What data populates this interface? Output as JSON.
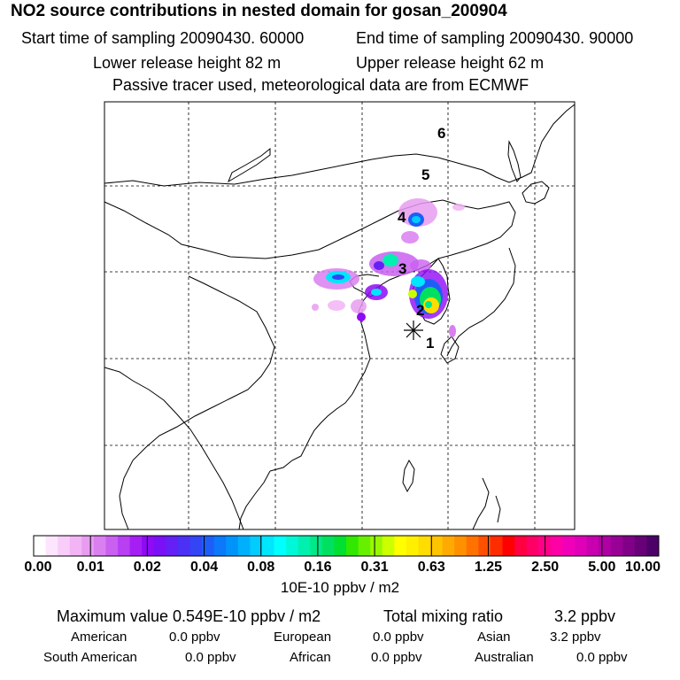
{
  "header": {
    "title": "NO2 source contributions in nested domain for gosan_200904",
    "start_time": "Start time of sampling 20090430. 60000",
    "end_time": "End time of sampling 20090430. 90000",
    "lower_release": "Lower release height   82 m",
    "upper_release": "Upper release height   62 m",
    "passive_note": "Passive tracer used, meteorological data are from ECMWF"
  },
  "chart_data": {
    "type": "heatmap",
    "title": "NO2 source contributions in nested domain for gosan_200904",
    "colorbar": {
      "tick_labels": [
        "0.00",
        "0.01",
        "0.02",
        "0.04",
        "0.08",
        "0.16",
        "0.31",
        "0.63",
        "1.25",
        "2.50",
        "5.00",
        "10.00"
      ],
      "unit": "10E-10 ppbv / m2",
      "colors": [
        "#ffffff",
        "#fde6fd",
        "#f9cdf9",
        "#f2b4f4",
        "#e79cf0",
        "#d97ff0",
        "#c960f0",
        "#b83ff2",
        "#a51ff4",
        "#8f0af5",
        "#7a10f5",
        "#6420f5",
        "#4c30f5",
        "#3345f5",
        "#1e5ef8",
        "#0c78fa",
        "#0094fb",
        "#00b0fc",
        "#00ccfd",
        "#00e6fe",
        "#00ffff",
        "#00f8d8",
        "#00f0b0",
        "#00e888",
        "#00e060",
        "#00e030",
        "#30e800",
        "#66f000",
        "#99f800",
        "#ccff00",
        "#ffff00",
        "#fff000",
        "#ffdd00",
        "#ffc400",
        "#ffaa00",
        "#ff9000",
        "#ff7200",
        "#ff5000",
        "#ff2c00",
        "#ff0000",
        "#ff0040",
        "#ff0066",
        "#ff0088",
        "#ff00a6",
        "#f000b8",
        "#e000b8",
        "#c800b0",
        "#b000a4",
        "#980096",
        "#800088",
        "#680078",
        "#4c0068"
      ]
    },
    "trajectory_labels": [
      "1",
      "2",
      "3",
      "4",
      "5",
      "6"
    ],
    "receptor": "Gosan",
    "max_value": "0.549E-10 ppbv / m2",
    "total_mixing_ratio": "3.2 ppbv"
  },
  "stats": {
    "max_label": "Maximum value  0.549E-10 ppbv / m2",
    "total_label": "Total mixing ratio",
    "total_value": "3.2 ppbv",
    "regions": [
      {
        "name": "American",
        "value": "0.0 ppbv"
      },
      {
        "name": "European",
        "value": "0.0 ppbv"
      },
      {
        "name": "Asian",
        "value": "3.2 ppbv"
      },
      {
        "name": "South American",
        "value": "0.0 ppbv"
      },
      {
        "name": "African",
        "value": "0.0 ppbv"
      },
      {
        "name": "Australian",
        "value": "0.0 ppbv"
      }
    ]
  }
}
